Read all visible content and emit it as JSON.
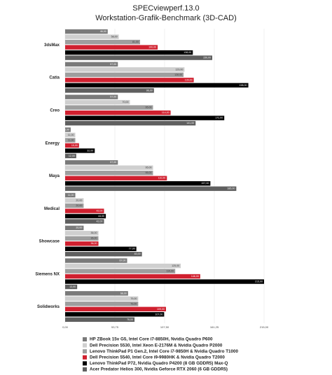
{
  "chart_data": {
    "type": "barh",
    "title": "SPECviewperf.13.0",
    "subtitle": "Workstation-Grafik-Benchmark (3D-CAD)",
    "categories": [
      "3dsMax",
      "Catia",
      "Creo",
      "Energy",
      "Maya",
      "Medical",
      "Showcase",
      "Siemens NX",
      "Solidworks"
    ],
    "series": [
      {
        "name": "HP ZBook 15v G5, Intel Core i7-8850H, Nvidia Quadro P600",
        "color": "#7a7a7a",
        "values": [
          46,
          57,
          57,
          6,
          57,
          11,
          20,
          67,
          68
        ],
        "value_labels": [
          "46,00",
          "57,00",
          "57,00",
          "6,00",
          "57,00",
          "11,00",
          "20,00",
          "67,00",
          "68,00"
        ]
      },
      {
        "name": "Dell Precision 5530, Intel Xeon E-2176M & Nvidia Quadro P2000",
        "color": "#cfcfcf",
        "values": [
          58,
          129,
          70,
          11,
          95,
          20,
          36,
          125,
          79
        ],
        "value_labels": [
          "58,00",
          "129,00",
          "70,00",
          "11,00",
          "95,00",
          "20,00",
          "36,00",
          "125,00",
          "79,00"
        ]
      },
      {
        "name": "Lenovo ThinkPad P1 Gen.2, Intel Core i7-9850H & Nvidia Quadro T1000",
        "color": "#9e9e9e",
        "values": [
          81,
          128,
          95,
          11,
          95,
          20,
          36,
          119,
          79
        ],
        "value_labels": [
          "81,00",
          "128,00",
          "95,00",
          "11,00",
          "95,00",
          "20,00",
          "36,00",
          "119,00",
          "79,00"
        ]
      },
      {
        "name": "Dell Precision 5540, Intel Core i9-9980HK & Nvidia Quadro T2000",
        "color": "#d0202f",
        "values": [
          100,
          139,
          114,
          15,
          110,
          42,
          36,
          146,
          109
        ],
        "value_labels": [
          "100,00",
          "139,00",
          "114,00",
          "15,00",
          "110,00",
          "42,00",
          "36,00",
          "146,00",
          "109,00"
        ]
      },
      {
        "name": "Lenovo ThinkPad P72, Nvidia Quadro P4200 (8 GB GDDR5) Max-Q",
        "color": "#000000",
        "values": [
          138,
          198,
          172,
          32,
          157,
          44,
          77,
          215,
          107
        ],
        "value_labels": [
          "138,00",
          "198,00",
          "172,00",
          "32,00",
          "157,00",
          "44,00",
          "77,00",
          "215,00",
          "107,00"
        ]
      },
      {
        "name": "Acer Predator Helios 300, Nvidia Geforce RTX 2060 (6 GB GDDR5)",
        "color": "#5f5f5f",
        "values": [
          159,
          96,
          141,
          12,
          185,
          42,
          83,
          13,
          75
        ],
        "value_labels": [
          "159,00",
          "96,00",
          "141,00",
          "12,00",
          "185,00",
          "42,00",
          "83,00",
          "13,00",
          "75,00"
        ]
      }
    ],
    "xlim": [
      0,
      215
    ],
    "xticks": [
      {
        "value": 0,
        "label": "0,00"
      },
      {
        "value": 53.75,
        "label": "53,75"
      },
      {
        "value": 107.5,
        "label": "107,50"
      },
      {
        "value": 161.25,
        "label": "161,25"
      },
      {
        "value": 215,
        "label": "215,00"
      }
    ],
    "grid": true
  }
}
